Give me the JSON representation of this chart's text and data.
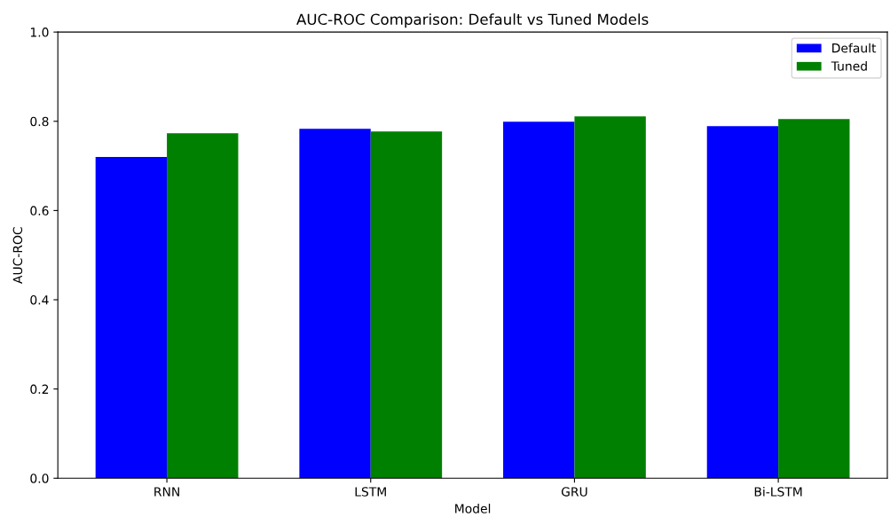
{
  "chart_data": {
    "type": "bar",
    "title": "AUC-ROC Comparison: Default vs Tuned Models",
    "xlabel": "Model",
    "ylabel": "AUC-ROC",
    "categories": [
      "RNN",
      "LSTM",
      "GRU",
      "Bi-LSTM"
    ],
    "series": [
      {
        "name": "Default",
        "color": "#0000ff",
        "values": [
          0.72,
          0.783,
          0.799,
          0.789
        ]
      },
      {
        "name": "Tuned",
        "color": "#008000",
        "values": [
          0.773,
          0.777,
          0.811,
          0.805
        ]
      }
    ],
    "ylim": [
      0,
      1
    ],
    "yticks": [
      {
        "value": 0,
        "label": "0.0"
      },
      0.2,
      0.4,
      0.6,
      0.8,
      {
        "value": 1,
        "label": "1.0"
      }
    ],
    "grid": false,
    "legend": "top right"
  }
}
